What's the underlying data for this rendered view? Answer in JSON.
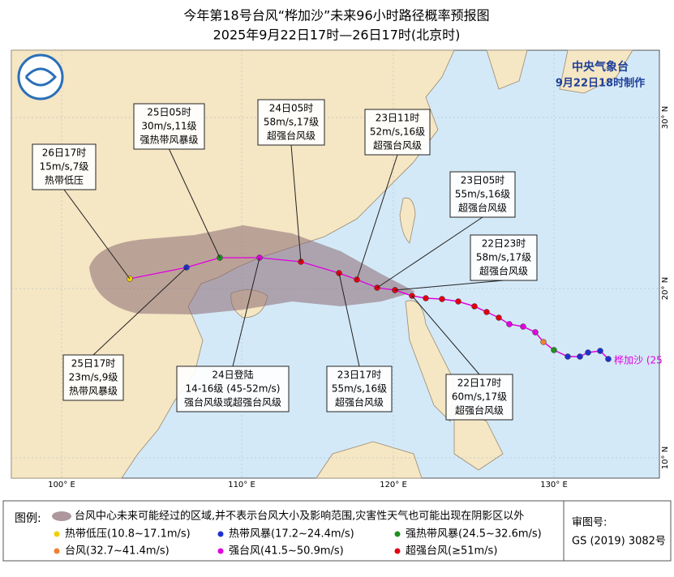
{
  "header": {
    "title": "今年第18号台风“桦加沙”未来96小时路径概率预报图",
    "subtitle": "2025年9月22日17时—26日17时(北京时)"
  },
  "agency": {
    "name": "中央气象台",
    "made": "9月22日18时制作"
  },
  "axes": {
    "lon": [
      "100° E",
      "110° E",
      "120° E",
      "130° E"
    ],
    "lat": [
      "30° N",
      "20° N",
      "10° N"
    ]
  },
  "callouts": [
    {
      "lines": [
        "26日17时",
        "15m/s,7级",
        "热带低压"
      ]
    },
    {
      "lines": [
        "25日05时",
        "30m/s,11级",
        "强热带风暴级"
      ]
    },
    {
      "lines": [
        "24日05时",
        "58m/s,17级",
        "超强台风级"
      ]
    },
    {
      "lines": [
        "23日11时",
        "52m/s,16级",
        "超强台风级"
      ]
    },
    {
      "lines": [
        "23日05时",
        "55m/s,16级",
        "超强台风级"
      ]
    },
    {
      "lines": [
        "22日23时",
        "58m/s,17级",
        "超强台风级"
      ]
    },
    {
      "lines": [
        "25日17时",
        "23m/s,9级",
        "热带风暴级"
      ]
    },
    {
      "lines": [
        "24日登陆",
        "14-16级 (45-52m/s)",
        "强台风级或超强台风级"
      ]
    },
    {
      "lines": [
        "23日17时",
        "55m/s,16级",
        "超强台风级"
      ]
    },
    {
      "lines": [
        "22日17时",
        "60m/s,17级",
        "超强台风级"
      ]
    }
  ],
  "typhoon_label": "桦加沙 (25",
  "legend": {
    "title": "图例:",
    "area": "台风中心未来可能经过的区域,并不表示台风大小及影响范围,灾害性天气也可能出现在阴影区以外",
    "items": [
      "热带低压(10.8~17.1m/s)",
      "热带风暴(17.2~24.4m/s)",
      "强热带风暴(24.5~32.6m/s)",
      "台风(32.7~41.4m/s)",
      "强台风(41.5~50.9m/s)",
      "超强台风(≥51m/s)"
    ]
  },
  "review": {
    "label": "审图号:",
    "number": "GS (2019) 3082号"
  }
}
